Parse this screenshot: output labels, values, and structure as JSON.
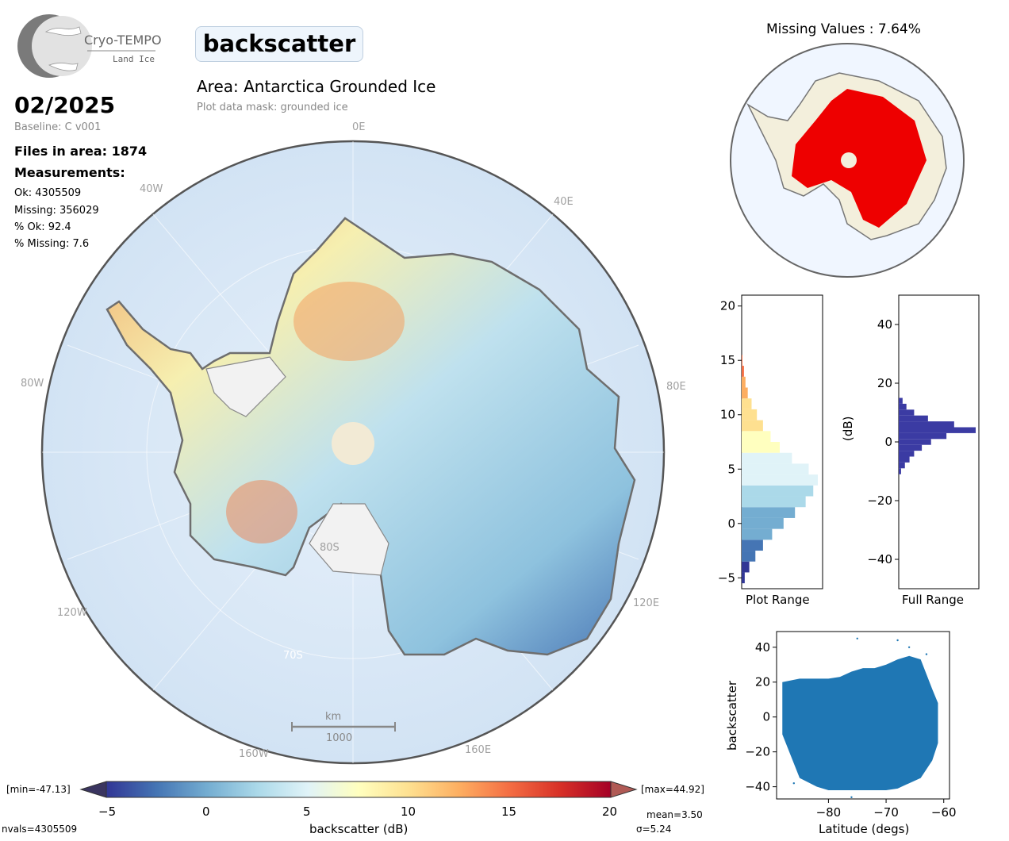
{
  "logo": {
    "name": "Cryo-TEMPO",
    "sub": "Land Ice"
  },
  "header": {
    "parameter": "backscatter",
    "area_title": "Area: Antarctica Grounded Ice",
    "mask": "Plot data mask: grounded ice"
  },
  "info": {
    "date": "02/2025",
    "baseline": "Baseline: C v001",
    "files": "Files in area: 1874",
    "measurements_label": "Measurements:",
    "ok": "Ok: 4305509",
    "missing": "Missing: 356029",
    "pct_ok": "% Ok: 92.4",
    "pct_missing": "% Missing: 7.6"
  },
  "map": {
    "longitude_labels": {
      "e0": "0E",
      "e40": "40E",
      "e80": "80E",
      "e120": "120E",
      "e160": "160E",
      "w40": "40W",
      "w80": "80W",
      "w120": "120W",
      "w160": "160W"
    },
    "latitude_labels": {
      "s80": "80S",
      "s70": "70S"
    },
    "scalebar": {
      "unit": "km",
      "value": "1000"
    }
  },
  "missing_panel": {
    "title": "Missing Values : 7.64%"
  },
  "colorbar": {
    "label": "backscatter (dB)",
    "min_label": "[min=-47.13]",
    "max_label": "[max=44.92]",
    "ticks": [
      "−5",
      "0",
      "5",
      "10",
      "15",
      "20"
    ],
    "nvals": "nvals=4305509",
    "mean": "mean=3.50",
    "sigma": "σ=5.24",
    "colors": [
      "#313695",
      "#4575b4",
      "#74add1",
      "#abd9e9",
      "#e0f3f8",
      "#ffffbf",
      "#fee090",
      "#fdae61",
      "#f46d43",
      "#d73027",
      "#a50026"
    ]
  },
  "chart_data": [
    {
      "type": "bar",
      "orientation": "horizontal",
      "xlabel": "Plot Range",
      "ylim": [
        -6,
        21
      ],
      "yticks": [
        "20",
        "15",
        "10",
        "5",
        "0",
        "−5"
      ],
      "bins_center": [
        -5,
        -4,
        -3,
        -2,
        -1,
        0,
        1,
        2,
        3,
        4,
        5,
        6,
        7,
        8,
        9,
        10,
        11,
        12,
        13,
        14,
        15
      ],
      "relative_counts": [
        0.04,
        0.1,
        0.18,
        0.28,
        0.4,
        0.55,
        0.7,
        0.84,
        0.94,
        1.0,
        0.88,
        0.66,
        0.5,
        0.38,
        0.28,
        0.2,
        0.13,
        0.08,
        0.05,
        0.03,
        0.01
      ]
    },
    {
      "type": "bar",
      "orientation": "horizontal",
      "xlabel": "Full Range",
      "ylabel": "(dB)",
      "ylim": [
        -50,
        50
      ],
      "yticks": [
        "40",
        "20",
        "0",
        "−20",
        "−40"
      ],
      "bar_color": "#3b3ba3",
      "bins_center": [
        -10,
        -8,
        -6,
        -4,
        -2,
        0,
        2,
        4,
        6,
        8,
        10,
        12,
        14
      ],
      "relative_counts": [
        0.03,
        0.08,
        0.14,
        0.2,
        0.3,
        0.42,
        0.62,
        1.0,
        0.72,
        0.38,
        0.2,
        0.1,
        0.05
      ]
    },
    {
      "type": "scatter",
      "xlabel": "Latitude (degs)",
      "ylabel": "backscatter",
      "xlim": [
        -89,
        -59
      ],
      "ylim": [
        -47,
        49
      ],
      "xticks": [
        "−80",
        "−70",
        "−60"
      ],
      "yticks": [
        "40",
        "20",
        "0",
        "−20",
        "−40"
      ],
      "point_color": "#1f77b4",
      "envelope": {
        "lat": [
          -88,
          -85,
          -82,
          -80,
          -78,
          -76,
          -74,
          -72,
          -70,
          -68,
          -66,
          -64,
          -62,
          -61
        ],
        "upper": [
          20,
          22,
          22,
          22,
          23,
          26,
          28,
          28,
          30,
          33,
          35,
          33,
          16,
          8
        ],
        "lower": [
          -10,
          -35,
          -40,
          -42,
          -42,
          -42,
          -42,
          -42,
          -42,
          -41,
          -38,
          -35,
          -25,
          -15
        ]
      }
    }
  ]
}
